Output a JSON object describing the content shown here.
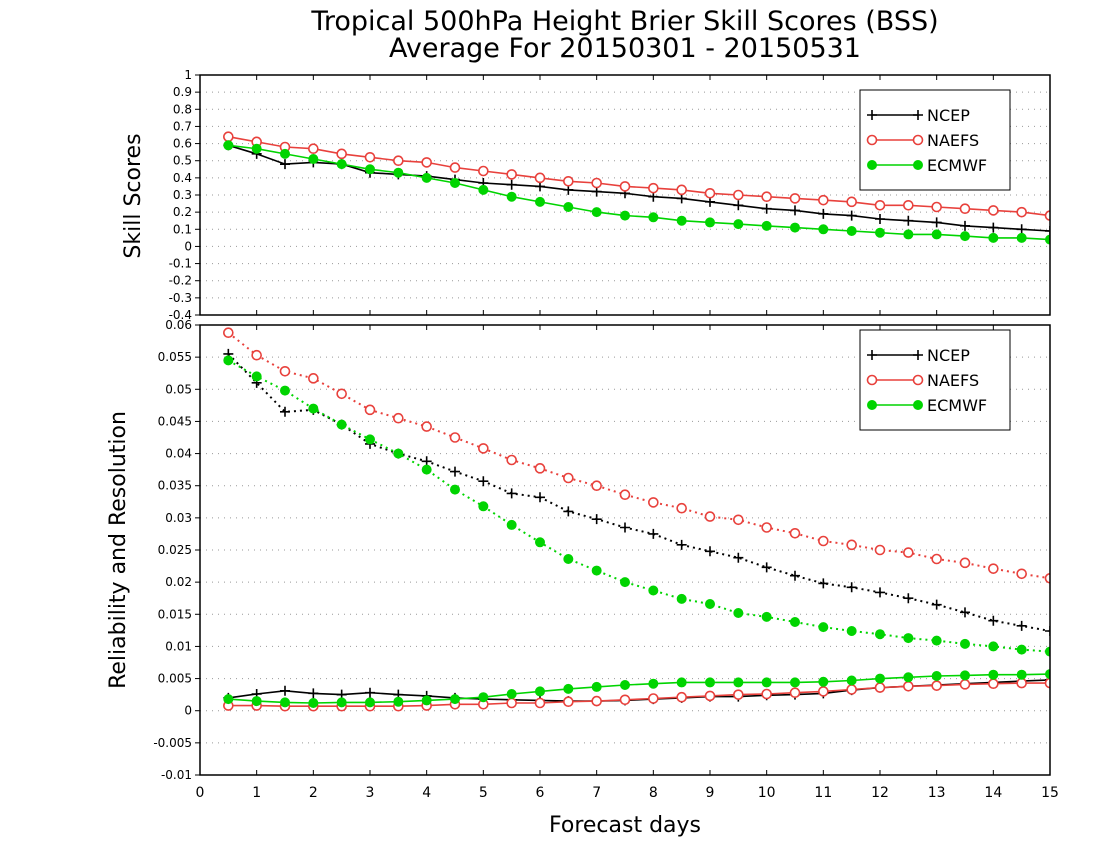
{
  "title_line1": "Tropical 500hPa Height Brier Skill Scores (BSS)",
  "title_line2": "Average For 20150301 - 20150531",
  "xlabel": "Forecast days",
  "colors": {
    "NCEP": "#000000",
    "NAEFS": "#e8413c",
    "ECMWF": "#00d400",
    "grid": "#999999"
  },
  "chart_data": [
    {
      "type": "line",
      "ylabel": "Skill Scores",
      "xlim": [
        0,
        15
      ],
      "ylim": [
        -0.4,
        1.0
      ],
      "x_ticks": [
        "0",
        "1",
        "2",
        "3",
        "4",
        "5",
        "6",
        "7",
        "8",
        "9",
        "10",
        "11",
        "12",
        "13",
        "14",
        "15"
      ],
      "y_ticks": [
        "-0.4",
        "-0.3",
        "-0.2",
        "-0.1",
        "0",
        "0.1",
        "0.2",
        "0.3",
        "0.4",
        "0.5",
        "0.6",
        "0.7",
        "0.8",
        "0.9",
        "1"
      ],
      "grid": true,
      "legend_position": "top-right",
      "x": [
        0.5,
        1,
        1.5,
        2,
        2.5,
        3,
        3.5,
        4,
        4.5,
        5,
        5.5,
        6,
        6.5,
        7,
        7.5,
        8,
        8.5,
        9,
        9.5,
        10,
        10.5,
        11,
        11.5,
        12,
        12.5,
        13,
        13.5,
        14,
        14.5,
        15
      ],
      "series": [
        {
          "name": "NCEP",
          "marker": "plus",
          "style": "solid",
          "values": [
            0.59,
            0.54,
            0.48,
            0.49,
            0.48,
            0.43,
            0.42,
            0.41,
            0.39,
            0.37,
            0.36,
            0.35,
            0.33,
            0.32,
            0.31,
            0.29,
            0.28,
            0.26,
            0.24,
            0.22,
            0.21,
            0.19,
            0.18,
            0.16,
            0.15,
            0.14,
            0.12,
            0.11,
            0.1,
            0.09
          ]
        },
        {
          "name": "NAEFS",
          "marker": "circle-open",
          "style": "solid",
          "values": [
            0.64,
            0.61,
            0.58,
            0.57,
            0.54,
            0.52,
            0.5,
            0.49,
            0.46,
            0.44,
            0.42,
            0.4,
            0.38,
            0.37,
            0.35,
            0.34,
            0.33,
            0.31,
            0.3,
            0.29,
            0.28,
            0.27,
            0.26,
            0.24,
            0.24,
            0.23,
            0.22,
            0.21,
            0.2,
            0.18
          ]
        },
        {
          "name": "ECMWF",
          "marker": "circle-filled",
          "style": "solid",
          "values": [
            0.59,
            0.57,
            0.54,
            0.51,
            0.48,
            0.45,
            0.43,
            0.4,
            0.37,
            0.33,
            0.29,
            0.26,
            0.23,
            0.2,
            0.18,
            0.17,
            0.15,
            0.14,
            0.13,
            0.12,
            0.11,
            0.1,
            0.09,
            0.08,
            0.07,
            0.07,
            0.06,
            0.05,
            0.05,
            0.04
          ]
        }
      ]
    },
    {
      "type": "line",
      "ylabel": "Reliability and Resolution",
      "xlim": [
        0,
        15
      ],
      "ylim": [
        -0.01,
        0.06
      ],
      "x_ticks": [
        "0",
        "1",
        "2",
        "3",
        "4",
        "5",
        "6",
        "7",
        "8",
        "9",
        "10",
        "11",
        "12",
        "13",
        "14",
        "15"
      ],
      "y_ticks": [
        "-0.01",
        "-0.005",
        "0",
        "0.005",
        "0.01",
        "0.015",
        "0.02",
        "0.025",
        "0.03",
        "0.035",
        "0.04",
        "0.045",
        "0.05",
        "0.055",
        "0.06"
      ],
      "grid": true,
      "legend_position": "top-right",
      "x": [
        0.5,
        1,
        1.5,
        2,
        2.5,
        3,
        3.5,
        4,
        4.5,
        5,
        5.5,
        6,
        6.5,
        7,
        7.5,
        8,
        8.5,
        9,
        9.5,
        10,
        10.5,
        11,
        11.5,
        12,
        12.5,
        13,
        13.5,
        14,
        14.5,
        15
      ],
      "series": [
        {
          "name": "NCEP",
          "kind": "resolution",
          "marker": "plus",
          "style": "dotted",
          "values": [
            0.0555,
            0.051,
            0.0465,
            0.0468,
            0.0445,
            0.0415,
            0.04,
            0.0388,
            0.0372,
            0.0357,
            0.0338,
            0.0332,
            0.031,
            0.0298,
            0.0285,
            0.0275,
            0.0258,
            0.0248,
            0.0238,
            0.0223,
            0.021,
            0.0198,
            0.0192,
            0.0184,
            0.0175,
            0.0165,
            0.0153,
            0.014,
            0.0132,
            0.0124
          ]
        },
        {
          "name": "NAEFS",
          "kind": "resolution",
          "marker": "circle-open",
          "style": "dotted",
          "values": [
            0.0588,
            0.0553,
            0.0528,
            0.0517,
            0.0493,
            0.0468,
            0.0455,
            0.0442,
            0.0425,
            0.0408,
            0.039,
            0.0377,
            0.0362,
            0.035,
            0.0336,
            0.0324,
            0.0315,
            0.0302,
            0.0297,
            0.0285,
            0.0276,
            0.0264,
            0.0258,
            0.025,
            0.0246,
            0.0236,
            0.023,
            0.0221,
            0.0213,
            0.0206
          ]
        },
        {
          "name": "ECMWF",
          "kind": "resolution",
          "marker": "circle-filled",
          "style": "dotted",
          "values": [
            0.0545,
            0.052,
            0.0498,
            0.047,
            0.0445,
            0.0422,
            0.04,
            0.0375,
            0.0344,
            0.0318,
            0.0289,
            0.0262,
            0.0236,
            0.0218,
            0.02,
            0.0187,
            0.0174,
            0.0166,
            0.0152,
            0.0146,
            0.0138,
            0.013,
            0.0124,
            0.0119,
            0.0113,
            0.0109,
            0.0104,
            0.01,
            0.0095,
            0.0092
          ]
        },
        {
          "name": "NCEP",
          "kind": "reliability",
          "marker": "plus",
          "style": "solid",
          "values": [
            0.002,
            0.0026,
            0.0031,
            0.0027,
            0.0025,
            0.0028,
            0.0025,
            0.0023,
            0.002,
            0.0018,
            0.0017,
            0.0016,
            0.0015,
            0.0015,
            0.0016,
            0.0018,
            0.002,
            0.0022,
            0.0022,
            0.0024,
            0.0025,
            0.0027,
            0.0032,
            0.0036,
            0.0038,
            0.004,
            0.0042,
            0.0044,
            0.0046,
            0.0048
          ]
        },
        {
          "name": "NAEFS",
          "kind": "reliability",
          "marker": "circle-open",
          "style": "solid",
          "values": [
            0.0008,
            0.0008,
            0.0007,
            0.0007,
            0.0007,
            0.0007,
            0.0007,
            0.0008,
            0.001,
            0.001,
            0.0012,
            0.0012,
            0.0014,
            0.0015,
            0.0017,
            0.0019,
            0.0021,
            0.0023,
            0.0025,
            0.0026,
            0.0028,
            0.003,
            0.0033,
            0.0036,
            0.0038,
            0.0039,
            0.0041,
            0.0042,
            0.0043,
            0.0043
          ]
        },
        {
          "name": "ECMWF",
          "kind": "reliability",
          "marker": "circle-filled",
          "style": "solid",
          "values": [
            0.0018,
            0.0015,
            0.0013,
            0.0012,
            0.0013,
            0.0013,
            0.0014,
            0.0016,
            0.0018,
            0.0021,
            0.0026,
            0.003,
            0.0034,
            0.0037,
            0.004,
            0.0042,
            0.0044,
            0.0044,
            0.0044,
            0.0044,
            0.0044,
            0.0045,
            0.0047,
            0.005,
            0.0052,
            0.0054,
            0.0055,
            0.0056,
            0.0056,
            0.0057
          ]
        }
      ]
    }
  ]
}
